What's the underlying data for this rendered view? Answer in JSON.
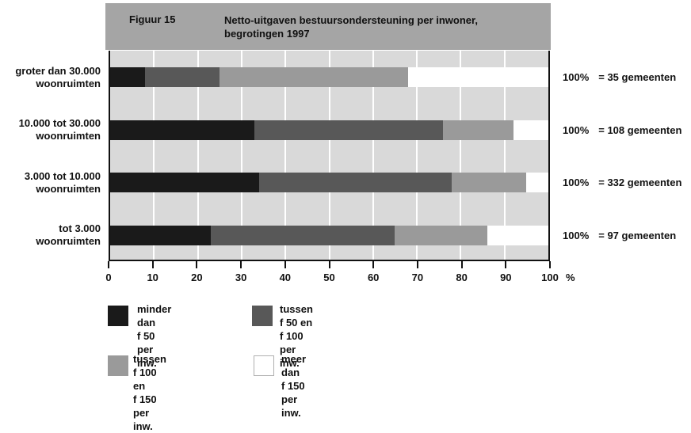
{
  "header": {
    "figure_label": "Figuur 15",
    "title_line1": "Netto-uitgaven bestuursondersteuning per inwoner,",
    "title_line2": "begrotingen 1997"
  },
  "chart_data": {
    "type": "bar",
    "orientation": "horizontal",
    "stacked": true,
    "title": "Netto-uitgaven bestuursondersteuning per inwoner, begrotingen 1997",
    "xlabel": "%",
    "xlim": [
      0,
      100
    ],
    "x_ticks": [
      0,
      10,
      20,
      30,
      40,
      50,
      60,
      70,
      80,
      90,
      100
    ],
    "grid": "vertical-white",
    "categories": [
      {
        "line1": "groter dan 30.000",
        "line2": "woonruimten",
        "total_pct": "100%",
        "total_eq": "= 35 gemeenten"
      },
      {
        "line1": "10.000 tot 30.000",
        "line2": "woonruimten",
        "total_pct": "100%",
        "total_eq": "= 108 gemeenten"
      },
      {
        "line1": "3.000 tot 10.000",
        "line2": "woonruimten",
        "total_pct": "100%",
        "total_eq": "= 332 gemeenten"
      },
      {
        "line1": "tot 3.000",
        "line2": "woonruimten",
        "total_pct": "100%",
        "total_eq": "= 97 gemeenten"
      }
    ],
    "series": [
      {
        "name": "minder dan f 50 per inw.",
        "color": "#1a1a1a",
        "values": [
          8,
          33,
          34,
          23
        ]
      },
      {
        "name": "tussen f 50 en f 100 per inw.",
        "color": "#585858",
        "values": [
          17,
          43,
          44,
          42
        ]
      },
      {
        "name": "tussen f 100 en f 150 per inw.",
        "color": "#9a9a9a",
        "values": [
          43,
          16,
          17,
          21
        ]
      },
      {
        "name": "meer dan f 150 per inw.",
        "color": "#ffffff",
        "values": [
          32,
          8,
          5,
          14
        ]
      }
    ]
  },
  "legend": {
    "items": [
      {
        "color": "#1a1a1a",
        "line1": "minder dan",
        "line2": "f 50 per inw."
      },
      {
        "color": "#585858",
        "line1": "tussen f 50 en",
        "line2": "f 100 per inw."
      },
      {
        "color": "#9a9a9a",
        "line1": "tussen f 100 en",
        "line2": "f 150 per inw."
      },
      {
        "color": "#ffffff",
        "line1": "meer dan",
        "line2": "f 150 per inw."
      }
    ]
  },
  "colors": {
    "header_bg": "#a5a5a5",
    "plot_bg": "#d9d9d9",
    "axis": "#111111",
    "gridline": "#ffffff"
  }
}
